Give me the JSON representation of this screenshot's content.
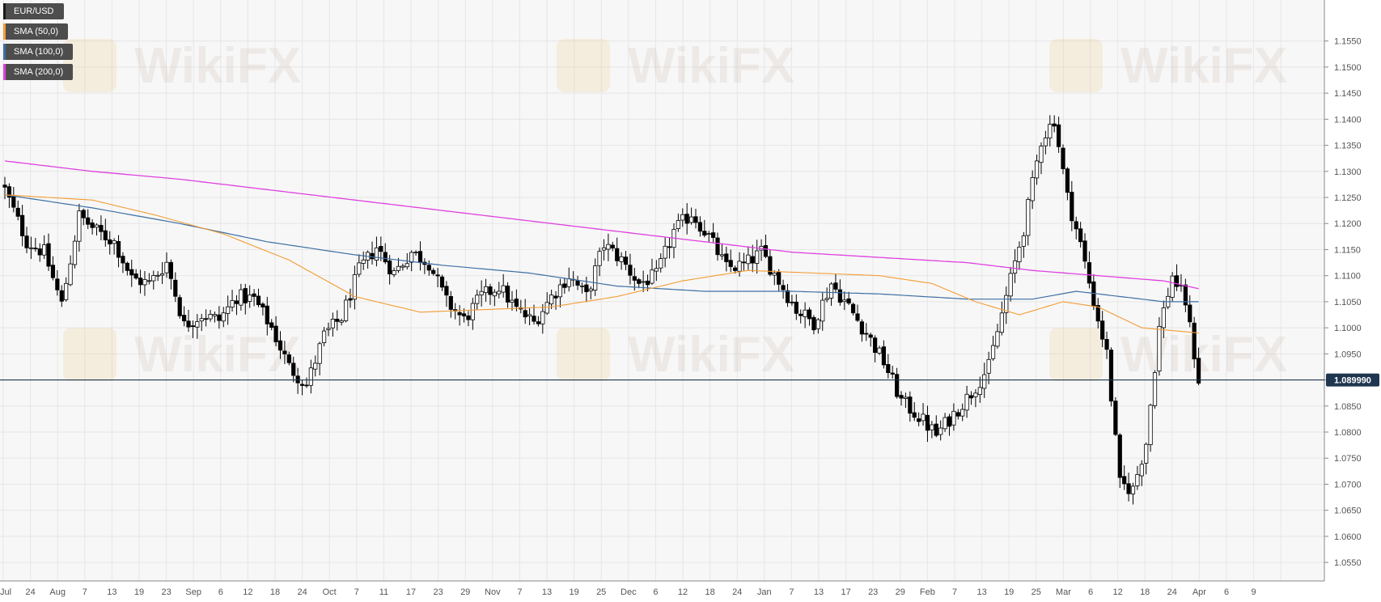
{
  "legend": {
    "symbol": "EUR/USD",
    "sma50": "SMA (50,0)",
    "sma100": "SMA (100,0)",
    "sma200": "SMA (200,0)"
  },
  "watermark": "WikiFX",
  "colors": {
    "background": "#f7f7f7",
    "grid": "#e6e6e6",
    "sma50": "#f39c34",
    "sma100": "#3d6fa3",
    "sma200": "#e040e0",
    "bull": "#ffffff",
    "bear": "#000000",
    "wick": "#000000",
    "price_line": "#1f3650"
  },
  "chart_data": {
    "type": "candlestick",
    "title": "EUR/USD",
    "ylim": [
      1.0525,
      1.16
    ],
    "y_ticks": [
      "1.1550",
      "1.1500",
      "1.1450",
      "1.1400",
      "1.1350",
      "1.1300",
      "1.1250",
      "1.1200",
      "1.1150",
      "1.1100",
      "1.1050",
      "1.1000",
      "1.0950",
      "1.0900",
      "1.0850",
      "1.0800",
      "1.0750",
      "1.0700",
      "1.0650",
      "1.0600",
      "1.0550"
    ],
    "x_ticks": [
      "Jul",
      "24",
      "Aug",
      "7",
      "13",
      "19",
      "23",
      "Sep",
      "6",
      "12",
      "18",
      "24",
      "Oct",
      "7",
      "11",
      "17",
      "23",
      "29",
      "Nov",
      "7",
      "13",
      "19",
      "25",
      "Dec",
      "6",
      "12",
      "18",
      "24",
      "Jan",
      "7",
      "13",
      "17",
      "23",
      "29",
      "Feb",
      "7",
      "13",
      "19",
      "25",
      "Mar",
      "6",
      "12",
      "18",
      "24",
      "Apr",
      "6",
      "9"
    ],
    "last_price": 1.09,
    "last_price_label": "1.089990",
    "grid": true,
    "legend_position": "top-left",
    "sma_labels": {
      "sma50": "SMA (50,0)",
      "sma100": "SMA (100,0)",
      "sma200": "SMA (200,0)"
    },
    "close_keypoints": [
      [
        0,
        1.1265
      ],
      [
        5,
        1.1165
      ],
      [
        9,
        1.1145
      ],
      [
        13,
        1.1045
      ],
      [
        17,
        1.1215
      ],
      [
        21,
        1.1185
      ],
      [
        25,
        1.1165
      ],
      [
        29,
        1.1095
      ],
      [
        33,
        1.1085
      ],
      [
        37,
        1.1125
      ],
      [
        41,
        1.1005
      ],
      [
        45,
        1.1025
      ],
      [
        49,
        1.1015
      ],
      [
        53,
        1.106
      ],
      [
        57,
        1.1055
      ],
      [
        61,
        1.1
      ],
      [
        65,
        1.0925
      ],
      [
        69,
        1.089
      ],
      [
        73,
        1.0985
      ],
      [
        77,
        1.102
      ],
      [
        81,
        1.111
      ],
      [
        85,
        1.1155
      ],
      [
        89,
        1.1105
      ],
      [
        93,
        1.1145
      ],
      [
        97,
        1.1125
      ],
      [
        101,
        1.105
      ],
      [
        105,
        1.1015
      ],
      [
        109,
        1.106
      ],
      [
        113,
        1.108
      ],
      [
        117,
        1.1035
      ],
      [
        121,
        1.101
      ],
      [
        125,
        1.106
      ],
      [
        129,
        1.11
      ],
      [
        133,
        1.106
      ],
      [
        137,
        1.116
      ],
      [
        141,
        1.113
      ],
      [
        145,
        1.1085
      ],
      [
        149,
        1.11
      ],
      [
        153,
        1.1185
      ],
      [
        157,
        1.122
      ],
      [
        161,
        1.1175
      ],
      [
        165,
        1.1115
      ],
      [
        169,
        1.112
      ],
      [
        173,
        1.1145
      ],
      [
        177,
        1.109
      ],
      [
        181,
        1.1035
      ],
      [
        185,
        1.101
      ],
      [
        189,
        1.1085
      ],
      [
        193,
        1.104
      ],
      [
        197,
        1.099
      ],
      [
        201,
        1.0935
      ],
      [
        205,
        1.086
      ],
      [
        209,
        1.083
      ],
      [
        213,
        1.0795
      ],
      [
        217,
        1.0835
      ],
      [
        221,
        1.0875
      ],
      [
        225,
        1.0925
      ],
      [
        229,
        1.106
      ],
      [
        233,
        1.119
      ],
      [
        237,
        1.136
      ],
      [
        240,
        1.14
      ],
      [
        243,
        1.125
      ],
      [
        246,
        1.116
      ],
      [
        249,
        1.105
      ],
      [
        252,
        1.095
      ],
      [
        255,
        1.07
      ],
      [
        258,
        1.069
      ],
      [
        261,
        1.078
      ],
      [
        264,
        1.1
      ],
      [
        267,
        1.11
      ],
      [
        270,
        1.105
      ],
      [
        273,
        1.09
      ]
    ],
    "sma50_keypoints": [
      [
        0,
        1.1255
      ],
      [
        20,
        1.1245
      ],
      [
        35,
        1.1215
      ],
      [
        50,
        1.118
      ],
      [
        65,
        1.113
      ],
      [
        80,
        1.106
      ],
      [
        95,
        1.103
      ],
      [
        110,
        1.1035
      ],
      [
        125,
        1.104
      ],
      [
        140,
        1.106
      ],
      [
        155,
        1.109
      ],
      [
        170,
        1.111
      ],
      [
        185,
        1.1105
      ],
      [
        200,
        1.11
      ],
      [
        212,
        1.1085
      ],
      [
        222,
        1.105
      ],
      [
        232,
        1.1025
      ],
      [
        242,
        1.105
      ],
      [
        250,
        1.104
      ],
      [
        260,
        1.1
      ],
      [
        273,
        1.099
      ]
    ],
    "sma100_keypoints": [
      [
        0,
        1.1255
      ],
      [
        20,
        1.123
      ],
      [
        40,
        1.12
      ],
      [
        60,
        1.1165
      ],
      [
        80,
        1.114
      ],
      [
        100,
        1.112
      ],
      [
        120,
        1.1105
      ],
      [
        140,
        1.108
      ],
      [
        160,
        1.107
      ],
      [
        180,
        1.107
      ],
      [
        200,
        1.1065
      ],
      [
        220,
        1.1055
      ],
      [
        235,
        1.1055
      ],
      [
        245,
        1.107
      ],
      [
        255,
        1.106
      ],
      [
        265,
        1.105
      ],
      [
        273,
        1.105
      ]
    ],
    "sma200_keypoints": [
      [
        0,
        1.132
      ],
      [
        20,
        1.13
      ],
      [
        40,
        1.1285
      ],
      [
        60,
        1.1265
      ],
      [
        80,
        1.1245
      ],
      [
        100,
        1.1225
      ],
      [
        120,
        1.1205
      ],
      [
        140,
        1.1185
      ],
      [
        160,
        1.1165
      ],
      [
        180,
        1.1145
      ],
      [
        200,
        1.1135
      ],
      [
        220,
        1.1125
      ],
      [
        235,
        1.111
      ],
      [
        250,
        1.11
      ],
      [
        265,
        1.109
      ],
      [
        273,
        1.1075
      ]
    ]
  }
}
